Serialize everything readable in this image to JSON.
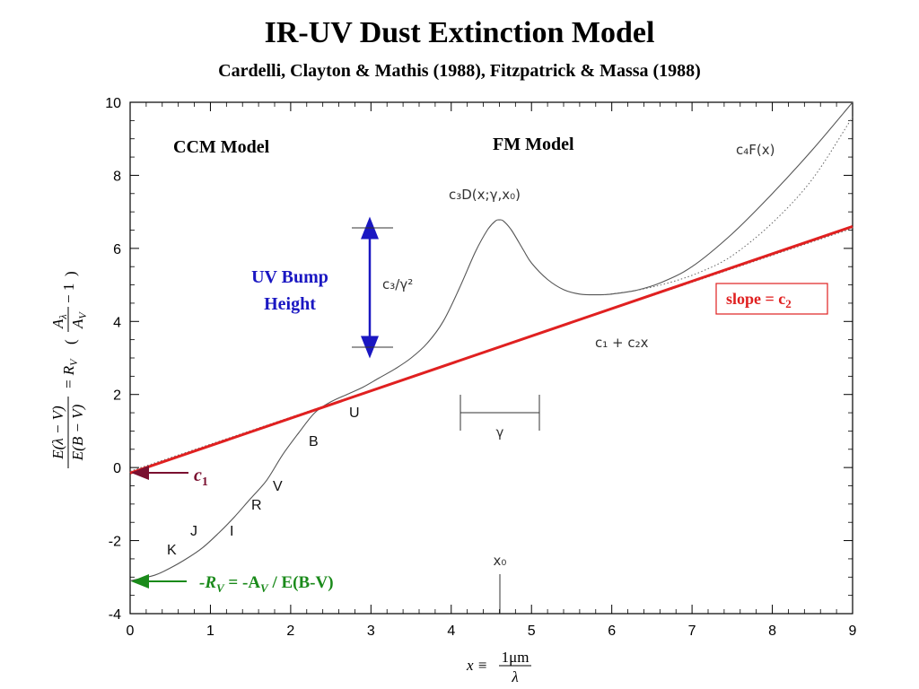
{
  "title": "IR-UV Dust Extinction Model",
  "subtitle": "Cardelli, Clayton & Mathis (1988), Fitzpatrick & Massa (1988)",
  "chart_data": {
    "type": "line",
    "xlim": [
      0,
      9
    ],
    "ylim": [
      -4,
      10
    ],
    "x_ticks": [
      0,
      1,
      2,
      3,
      4,
      5,
      6,
      7,
      8,
      9
    ],
    "y_ticks": [
      -4,
      -2,
      0,
      2,
      4,
      6,
      8,
      10
    ],
    "x_tick_labels": [
      "0",
      "1",
      "2",
      "3",
      "4",
      "5",
      "6",
      "7",
      "8",
      "9"
    ],
    "y_tick_labels": [
      "-4",
      "-2",
      "0",
      "2",
      "4",
      "6",
      "8",
      "10"
    ],
    "xlabel": {
      "lhs": "x ≡",
      "numerator": "1μm",
      "denominator": "λ"
    },
    "ylabel": {
      "frac1_num": "E(λ − V)",
      "frac1_den": "E(B − V)",
      "mid": "= R",
      "mid_sub": "V",
      "frac2_num": "A",
      "frac2_num_sub": "λ",
      "frac2_den": "A",
      "frac2_den_sub": "V",
      "tail": "− 1"
    },
    "grid": false,
    "series": [
      {
        "color": "#555555",
        "style": "solid",
        "x": [
          0.0,
          0.3,
          0.5,
          0.7,
          0.9,
          1.1,
          1.3,
          1.5,
          1.7,
          1.9,
          2.1,
          2.3,
          2.5,
          2.7,
          2.9,
          3.1,
          3.3,
          3.5,
          3.7,
          3.9,
          4.1,
          4.3,
          4.45,
          4.55,
          4.6,
          4.65,
          4.75,
          4.9,
          5.0,
          5.2,
          5.4,
          5.6,
          5.8,
          6.0,
          6.3,
          6.6,
          7.0,
          7.5,
          8.0,
          8.5,
          9.0
        ],
        "y": [
          -3.1,
          -2.95,
          -2.75,
          -2.5,
          -2.2,
          -1.8,
          -1.35,
          -0.85,
          -0.35,
          0.35,
          0.95,
          1.5,
          1.8,
          2.0,
          2.2,
          2.45,
          2.7,
          3.0,
          3.4,
          4.0,
          4.9,
          5.9,
          6.5,
          6.75,
          6.78,
          6.75,
          6.5,
          5.95,
          5.6,
          5.15,
          4.87,
          4.75,
          4.73,
          4.75,
          4.85,
          5.05,
          5.5,
          6.4,
          7.5,
          8.7,
          10.0
        ]
      },
      {
        "color": "#666666",
        "style": "dotted",
        "x": [
          5.9,
          6.3,
          6.7,
          7.1,
          7.5,
          8.0,
          8.5,
          9.0
        ],
        "y": [
          4.73,
          4.85,
          5.05,
          5.35,
          5.8,
          6.7,
          7.9,
          9.6
        ]
      },
      {
        "color": "#666666",
        "style": "dotted",
        "x": [
          0,
          9
        ],
        "y": [
          -0.1,
          6.55
        ]
      },
      {
        "color": "#e02020",
        "style": "solid-thick",
        "x": [
          0,
          9
        ],
        "y": [
          -0.15,
          6.6
        ]
      }
    ]
  },
  "annotations": {
    "ccm_model": "CCM Model",
    "fm_model": "FM Model",
    "c4F": "c₄F(x)",
    "c3D": "c₃D(x;γ,x₀)",
    "c3_over_gamma": "c₃/γ²",
    "uv_bump_line1": "UV Bump",
    "uv_bump_line2": "Height",
    "slope": "slope = c",
    "slope_sub": "2",
    "c1c2x": "c₁ + c₂x",
    "gamma": "γ",
    "x0": "x₀",
    "c1": "c",
    "c1_sub": "1",
    "rv_label": "-R",
    "rv_sub1": "V",
    "rv_mid": " = -A",
    "rv_sub2": "V",
    "rv_tail": " / E(B-V)",
    "bands": [
      "K",
      "J",
      "I",
      "R",
      "V",
      "B",
      "U"
    ]
  },
  "colors": {
    "red": "#e02020",
    "blue": "#1a17c2",
    "green": "#1a8a1a",
    "maroon": "#7a1030",
    "curve": "#555555"
  }
}
